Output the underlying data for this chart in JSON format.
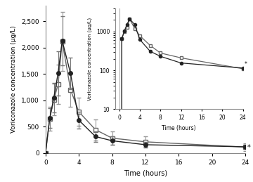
{
  "time": [
    0,
    0.5,
    1,
    1.5,
    2,
    3,
    4,
    6,
    8,
    12,
    24
  ],
  "series1_mean": [
    0,
    650,
    1010,
    1300,
    2120,
    1200,
    780,
    440,
    280,
    210,
    110
  ],
  "series1_err": [
    0,
    230,
    300,
    370,
    560,
    320,
    270,
    200,
    130,
    100,
    75
  ],
  "series2_mean": [
    0,
    660,
    1050,
    1510,
    2130,
    1510,
    620,
    310,
    230,
    155,
    115
  ],
  "series2_err": [
    0,
    190,
    280,
    420,
    470,
    300,
    160,
    100,
    80,
    55,
    40
  ],
  "xlabel": "Time (hours)",
  "ylabel": "Voriconazole concentration (µg/L)",
  "inset_ylabel": "Voriconazole concentration (µg/L)",
  "inset_xlabel": "Time (hours)",
  "xlim": [
    0,
    24
  ],
  "ylim": [
    0,
    2800
  ],
  "yticks": [
    0,
    500,
    1000,
    1500,
    2000,
    2500
  ],
  "xticks": [
    0,
    4,
    8,
    12,
    16,
    20,
    24
  ],
  "inset_xticks": [
    0,
    4,
    8,
    12,
    16,
    20,
    24
  ],
  "line_color1": "#666666",
  "line_color2": "#222222",
  "star_annotation": "*"
}
